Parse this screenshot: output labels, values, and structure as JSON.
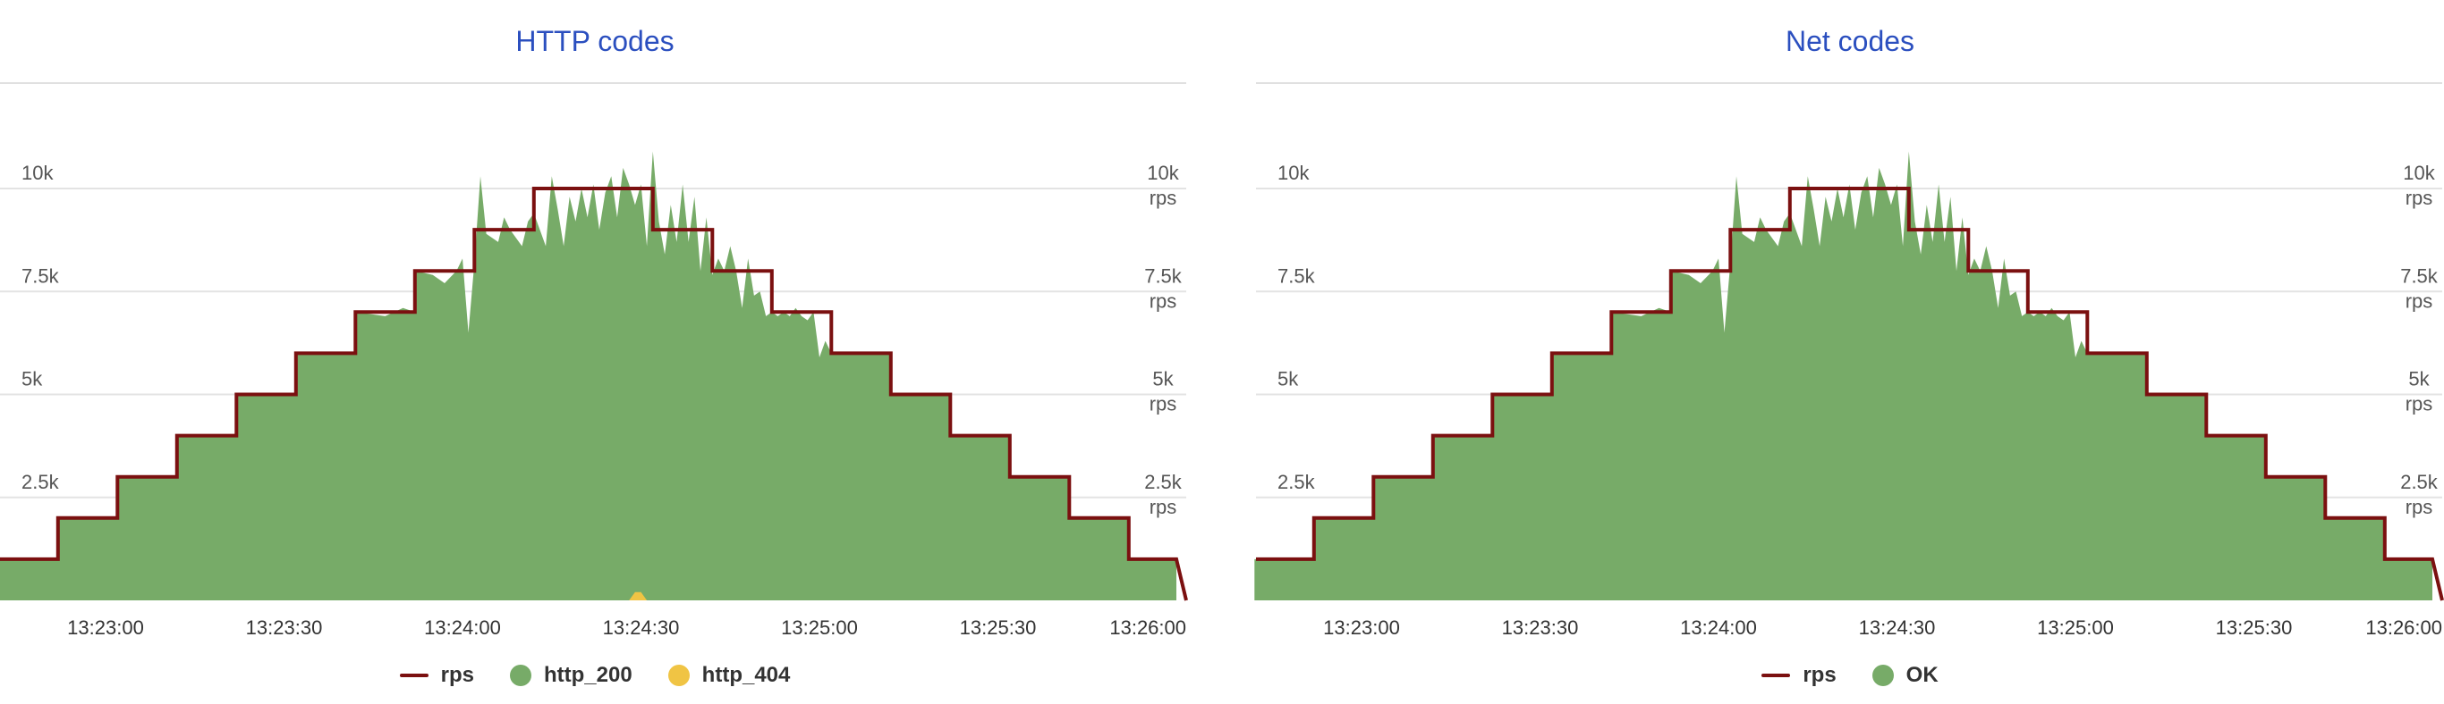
{
  "chart_data": [
    {
      "type": "area",
      "title": "HTTP codes",
      "y_tick_labels": [
        "2.5k",
        "5k",
        "7.5k",
        "10k"
      ],
      "right_axis_tick_labels": [
        "2.5k",
        "5k",
        "7.5k",
        "10k"
      ],
      "right_axis_unit": "rps",
      "x_tick_labels": [
        "13:23:00",
        "13:23:30",
        "13:24:00",
        "13:24:30",
        "13:25:00",
        "13:25:30",
        "13:26:00"
      ],
      "ylim": [
        0,
        10000
      ],
      "x_range_seconds": [
        -18,
        180
      ],
      "grid": true,
      "legend_position": "bottom",
      "series": [
        {
          "name": "rps",
          "kind": "step-line",
          "color": "#7b1010",
          "segments": [
            {
              "t0": -18,
              "t1": -8,
              "value": 1000
            },
            {
              "t0": -8,
              "t1": 2,
              "value": 2000
            },
            {
              "t0": 2,
              "t1": 12,
              "value": 3000
            },
            {
              "t0": 12,
              "t1": 22,
              "value": 4000
            },
            {
              "t0": 22,
              "t1": 32,
              "value": 5000
            },
            {
              "t0": 32,
              "t1": 42,
              "value": 6000
            },
            {
              "t0": 42,
              "t1": 52,
              "value": 7000
            },
            {
              "t0": 52,
              "t1": 62,
              "value": 8000
            },
            {
              "t0": 62,
              "t1": 72,
              "value": 9000
            },
            {
              "t0": 72,
              "t1": 92,
              "value": 10000
            },
            {
              "t0": 92,
              "t1": 102,
              "value": 9000
            },
            {
              "t0": 102,
              "t1": 112,
              "value": 8000
            },
            {
              "t0": 112,
              "t1": 122,
              "value": 7000
            },
            {
              "t0": 122,
              "t1": 132,
              "value": 6000
            },
            {
              "t0": 132,
              "t1": 142,
              "value": 5000
            },
            {
              "t0": 142,
              "t1": 152,
              "value": 4000
            },
            {
              "t0": 152,
              "t1": 162,
              "value": 3000
            },
            {
              "t0": 162,
              "t1": 172,
              "value": 2000
            },
            {
              "t0": 172,
              "t1": 180,
              "value": 1000
            }
          ]
        },
        {
          "name": "http_200",
          "kind": "area",
          "color": "#77ab68",
          "points": [
            [
              -18,
              1000
            ],
            [
              -8,
              1000
            ],
            [
              -7.9,
              2000
            ],
            [
              2,
              2000
            ],
            [
              2.1,
              3000
            ],
            [
              12,
              3000
            ],
            [
              12.1,
              4000
            ],
            [
              22,
              4000
            ],
            [
              22.1,
              5000
            ],
            [
              32,
              5000
            ],
            [
              32.1,
              6000
            ],
            [
              42,
              6000
            ],
            [
              42.1,
              7000
            ],
            [
              47,
              6900
            ],
            [
              50,
              7100
            ],
            [
              52,
              7000
            ],
            [
              52.1,
              8000
            ],
            [
              55,
              7900
            ],
            [
              57,
              7700
            ],
            [
              59,
              8000
            ],
            [
              60,
              8300
            ],
            [
              61,
              6500
            ],
            [
              62,
              8200
            ],
            [
              63,
              10300
            ],
            [
              64,
              8900
            ],
            [
              66,
              8700
            ],
            [
              67,
              9300
            ],
            [
              68,
              9000
            ],
            [
              69,
              8800
            ],
            [
              70,
              8600
            ],
            [
              71,
              9200
            ],
            [
              72,
              9400
            ],
            [
              74,
              8600
            ],
            [
              75,
              10300
            ],
            [
              76,
              9500
            ],
            [
              77,
              8600
            ],
            [
              78,
              9800
            ],
            [
              79,
              9200
            ],
            [
              80,
              10000
            ],
            [
              81,
              9300
            ],
            [
              82,
              10100
            ],
            [
              83,
              9000
            ],
            [
              84,
              9900
            ],
            [
              85,
              10300
            ],
            [
              86,
              9300
            ],
            [
              87,
              10500
            ],
            [
              88,
              10100
            ],
            [
              89,
              9600
            ],
            [
              90,
              10100
            ],
            [
              91,
              8600
            ],
            [
              92,
              10900
            ],
            [
              93,
              9200
            ],
            [
              94,
              8400
            ],
            [
              95,
              9600
            ],
            [
              96,
              8700
            ],
            [
              97,
              10100
            ],
            [
              98,
              8700
            ],
            [
              99,
              9800
            ],
            [
              100,
              8000
            ],
            [
              101,
              9300
            ],
            [
              102,
              7900
            ],
            [
              103,
              8300
            ],
            [
              104,
              8000
            ],
            [
              105,
              8600
            ],
            [
              106,
              8000
            ],
            [
              107,
              7100
            ],
            [
              108,
              8300
            ],
            [
              109,
              7400
            ],
            [
              110,
              7500
            ],
            [
              111,
              6900
            ],
            [
              112,
              7000
            ],
            [
              113,
              6900
            ],
            [
              114,
              7000
            ],
            [
              115,
              6900
            ],
            [
              116,
              7100
            ],
            [
              117,
              6900
            ],
            [
              118,
              6800
            ],
            [
              119,
              7000
            ],
            [
              120,
              5900
            ],
            [
              121,
              6300
            ],
            [
              122,
              6000
            ],
            [
              132,
              6000
            ],
            [
              132.1,
              5000
            ],
            [
              142,
              5000
            ],
            [
              142.1,
              4000
            ],
            [
              152,
              4000
            ],
            [
              152.1,
              3000
            ],
            [
              162,
              3000
            ],
            [
              162.1,
              2000
            ],
            [
              172,
              2000
            ],
            [
              172.1,
              1000
            ],
            [
              180,
              1000
            ],
            [
              180,
              0
            ]
          ]
        },
        {
          "name": "http_404",
          "kind": "area",
          "color": "#f0c444",
          "points": [
            [
              88,
              0
            ],
            [
              89,
              200
            ],
            [
              90,
              200
            ],
            [
              91,
              0
            ]
          ]
        }
      ]
    },
    {
      "type": "area",
      "title": "Net codes",
      "y_tick_labels": [
        "2.5k",
        "5k",
        "7.5k",
        "10k"
      ],
      "right_axis_tick_labels": [
        "2.5k",
        "5k",
        "7.5k",
        "10k"
      ],
      "right_axis_unit": "rps",
      "x_tick_labels": [
        "13:23:00",
        "13:23:30",
        "13:24:00",
        "13:24:30",
        "13:25:00",
        "13:25:30",
        "13:26:00"
      ],
      "ylim": [
        0,
        10000
      ],
      "x_range_seconds": [
        -18,
        180
      ],
      "grid": true,
      "legend_position": "bottom",
      "series": [
        {
          "name": "rps",
          "kind": "step-line",
          "color": "#7b1010",
          "segments": [
            {
              "t0": -18,
              "t1": -8,
              "value": 1000
            },
            {
              "t0": -8,
              "t1": 2,
              "value": 2000
            },
            {
              "t0": 2,
              "t1": 12,
              "value": 3000
            },
            {
              "t0": 12,
              "t1": 22,
              "value": 4000
            },
            {
              "t0": 22,
              "t1": 32,
              "value": 5000
            },
            {
              "t0": 32,
              "t1": 42,
              "value": 6000
            },
            {
              "t0": 42,
              "t1": 52,
              "value": 7000
            },
            {
              "t0": 52,
              "t1": 62,
              "value": 8000
            },
            {
              "t0": 62,
              "t1": 72,
              "value": 9000
            },
            {
              "t0": 72,
              "t1": 92,
              "value": 10000
            },
            {
              "t0": 92,
              "t1": 102,
              "value": 9000
            },
            {
              "t0": 102,
              "t1": 112,
              "value": 8000
            },
            {
              "t0": 112,
              "t1": 122,
              "value": 7000
            },
            {
              "t0": 122,
              "t1": 132,
              "value": 6000
            },
            {
              "t0": 132,
              "t1": 142,
              "value": 5000
            },
            {
              "t0": 142,
              "t1": 152,
              "value": 4000
            },
            {
              "t0": 152,
              "t1": 162,
              "value": 3000
            },
            {
              "t0": 162,
              "t1": 172,
              "value": 2000
            },
            {
              "t0": 172,
              "t1": 180,
              "value": 1000
            }
          ]
        },
        {
          "name": "OK",
          "kind": "area",
          "color": "#77ab68",
          "points": [
            [
              -18,
              1000
            ],
            [
              -8,
              1000
            ],
            [
              -7.9,
              2000
            ],
            [
              2,
              2000
            ],
            [
              2.1,
              3000
            ],
            [
              12,
              3000
            ],
            [
              12.1,
              4000
            ],
            [
              22,
              4000
            ],
            [
              22.1,
              5000
            ],
            [
              32,
              5000
            ],
            [
              32.1,
              6000
            ],
            [
              42,
              6000
            ],
            [
              42.1,
              7000
            ],
            [
              47,
              6900
            ],
            [
              50,
              7100
            ],
            [
              52,
              7000
            ],
            [
              52.1,
              8000
            ],
            [
              55,
              7900
            ],
            [
              57,
              7700
            ],
            [
              59,
              8000
            ],
            [
              60,
              8300
            ],
            [
              61,
              6500
            ],
            [
              62,
              8200
            ],
            [
              63,
              10300
            ],
            [
              64,
              8900
            ],
            [
              66,
              8700
            ],
            [
              67,
              9300
            ],
            [
              68,
              9000
            ],
            [
              69,
              8800
            ],
            [
              70,
              8600
            ],
            [
              71,
              9200
            ],
            [
              72,
              9400
            ],
            [
              74,
              8600
            ],
            [
              75,
              10300
            ],
            [
              76,
              9500
            ],
            [
              77,
              8600
            ],
            [
              78,
              9800
            ],
            [
              79,
              9200
            ],
            [
              80,
              10000
            ],
            [
              81,
              9300
            ],
            [
              82,
              10100
            ],
            [
              83,
              9000
            ],
            [
              84,
              9900
            ],
            [
              85,
              10300
            ],
            [
              86,
              9300
            ],
            [
              87,
              10500
            ],
            [
              88,
              10100
            ],
            [
              89,
              9600
            ],
            [
              90,
              10100
            ],
            [
              91,
              8600
            ],
            [
              92,
              10900
            ],
            [
              93,
              9200
            ],
            [
              94,
              8400
            ],
            [
              95,
              9600
            ],
            [
              96,
              8700
            ],
            [
              97,
              10100
            ],
            [
              98,
              8700
            ],
            [
              99,
              9800
            ],
            [
              100,
              8000
            ],
            [
              101,
              9300
            ],
            [
              102,
              7900
            ],
            [
              103,
              8300
            ],
            [
              104,
              8000
            ],
            [
              105,
              8600
            ],
            [
              106,
              8000
            ],
            [
              107,
              7100
            ],
            [
              108,
              8300
            ],
            [
              109,
              7400
            ],
            [
              110,
              7500
            ],
            [
              111,
              6900
            ],
            [
              112,
              7000
            ],
            [
              113,
              6900
            ],
            [
              114,
              7000
            ],
            [
              115,
              6900
            ],
            [
              116,
              7100
            ],
            [
              117,
              6900
            ],
            [
              118,
              6800
            ],
            [
              119,
              7000
            ],
            [
              120,
              5900
            ],
            [
              121,
              6300
            ],
            [
              122,
              6000
            ],
            [
              132,
              6000
            ],
            [
              132.1,
              5000
            ],
            [
              142,
              5000
            ],
            [
              142.1,
              4000
            ],
            [
              152,
              4000
            ],
            [
              152.1,
              3000
            ],
            [
              162,
              3000
            ],
            [
              162.1,
              2000
            ],
            [
              172,
              2000
            ],
            [
              172.1,
              1000
            ],
            [
              180,
              1000
            ],
            [
              180,
              0
            ]
          ]
        }
      ]
    }
  ]
}
